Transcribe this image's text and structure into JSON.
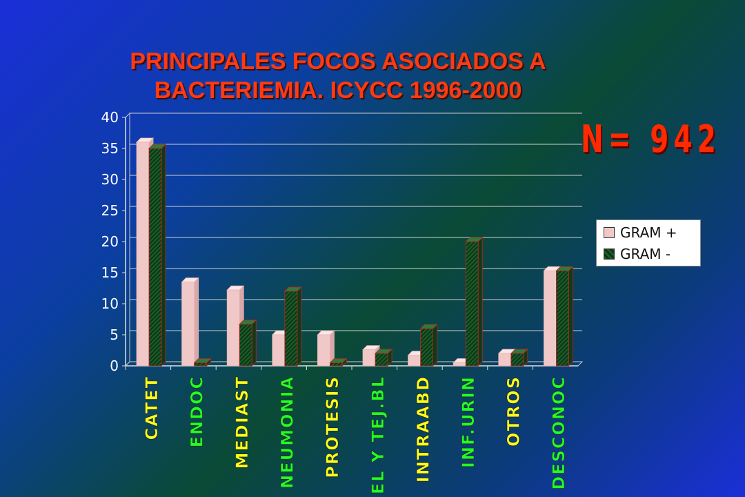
{
  "title_lines": [
    "PRINCIPALES FOCOS ASOCIADOS A",
    "BACTERIEMIA. ICYCC 1996-2000"
  ],
  "n_label": "N= 942",
  "colors": {
    "gram_pos": "#f0c8c8",
    "gram_neg": "#1d5a2a",
    "title": "#ff3a12",
    "n_label": "#ff2a00",
    "category_yellow": "#ffff1a",
    "category_green": "#22ff22"
  },
  "chart_data": {
    "type": "bar",
    "categories": [
      "CATET",
      "ENDOC",
      "MEDIAST",
      "NEUMONIA",
      "PROTESIS",
      "PIEL Y TEJ.BL",
      "INTRAABD",
      "INF.URIN",
      "OTROS",
      "DESCONOC"
    ],
    "category_colors": [
      "yellow",
      "green",
      "yellow",
      "green",
      "yellow",
      "green",
      "yellow",
      "green",
      "yellow",
      "green"
    ],
    "series": [
      {
        "name": "GRAM +",
        "values": [
          36,
          13.5,
          12.2,
          5,
          5,
          2.6,
          1.7,
          0.5,
          2,
          15.3
        ]
      },
      {
        "name": "GRAM -",
        "values": [
          35,
          0.5,
          6.7,
          12,
          0.5,
          2,
          6,
          20,
          2,
          15.3
        ]
      }
    ],
    "ylim": [
      0,
      40
    ],
    "yticks": [
      0,
      5,
      10,
      15,
      20,
      25,
      30,
      35,
      40
    ],
    "grid": true,
    "legend_position": "right"
  }
}
